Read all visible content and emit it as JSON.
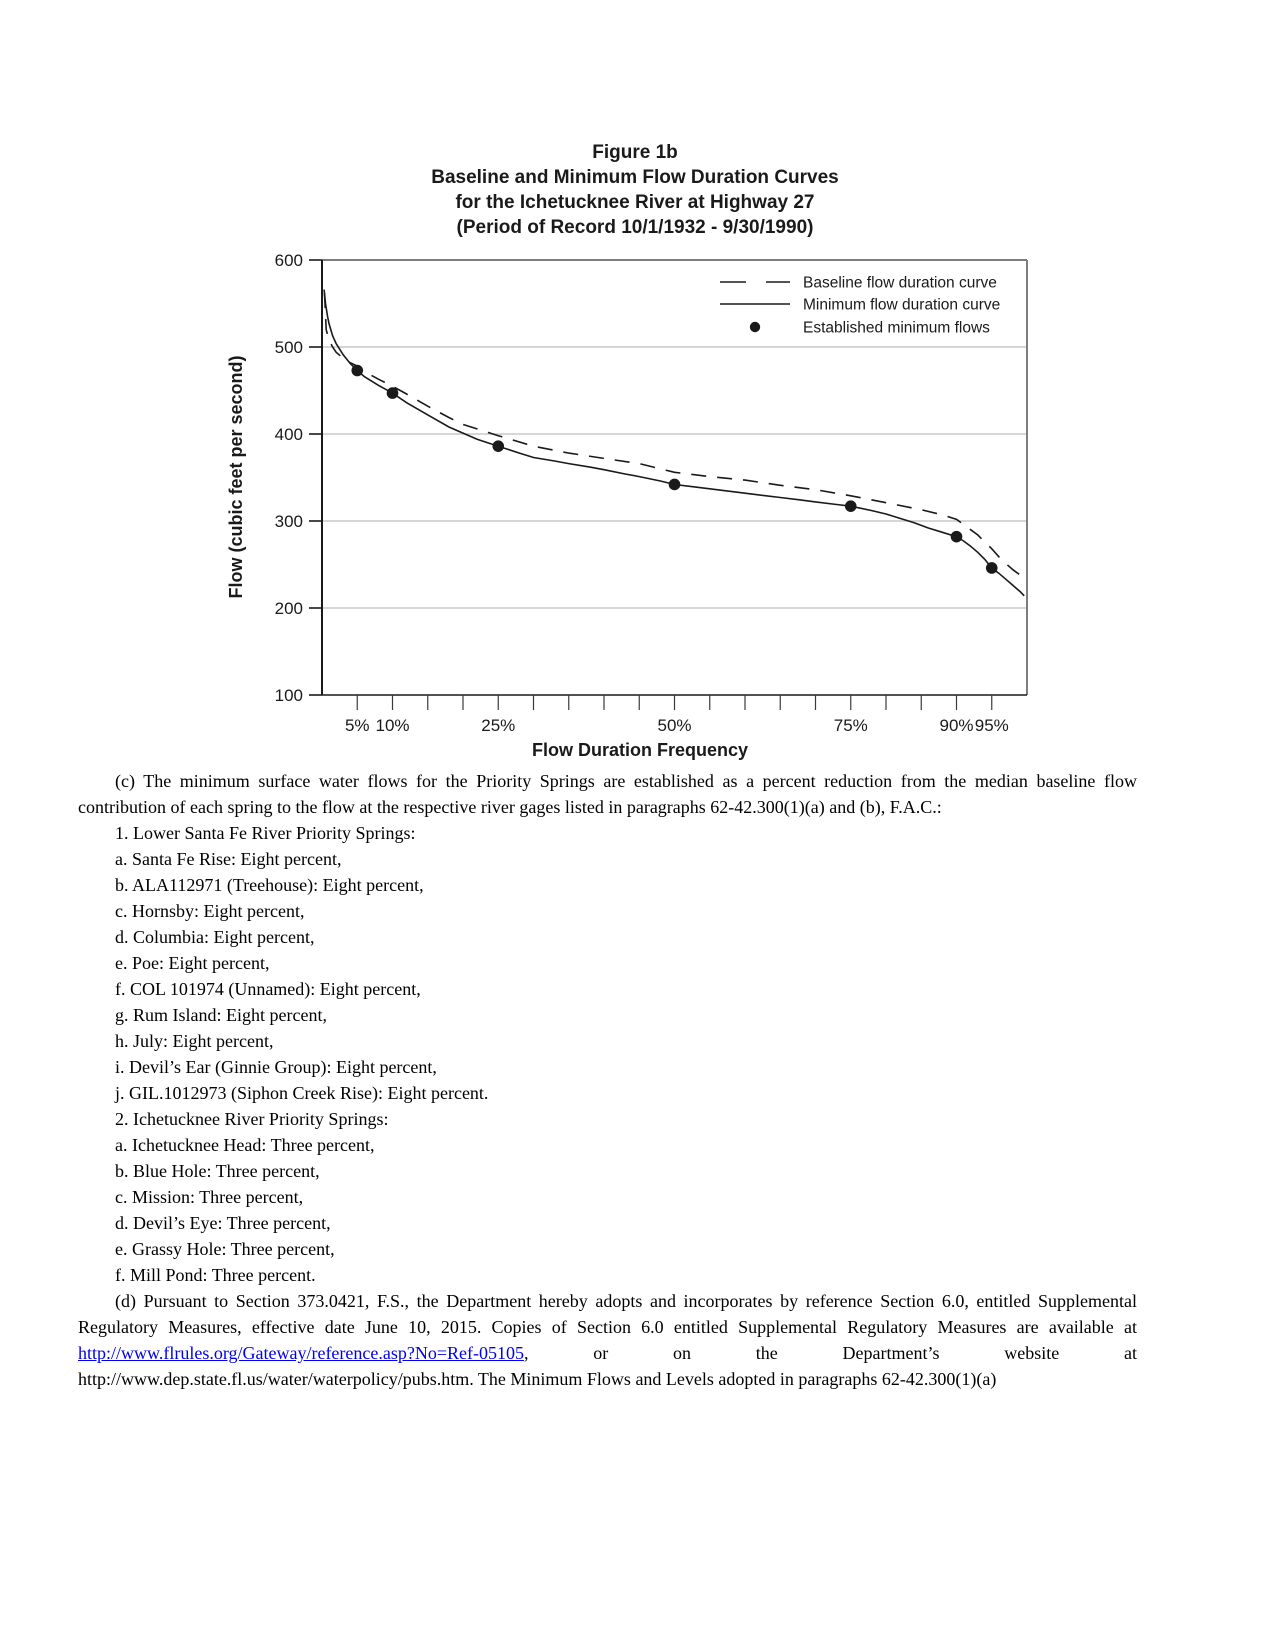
{
  "figure": {
    "title_lines": [
      "Figure 1b",
      "Baseline and Minimum Flow Duration Curves",
      "for the Ichetucknee River at Highway 27",
      "(Period of Record 10/1/1932 - 9/30/1990)"
    ]
  },
  "chart_data": {
    "type": "line",
    "title": "Figure 1b  Baseline and Minimum Flow Duration Curves for the Ichetucknee River at Highway 27 (Period of Record 10/1/1932 - 9/30/1990)",
    "xlabel": "Flow Duration Frequency",
    "ylabel": "Flow (cubic feet per second)",
    "xlim": [
      0,
      100
    ],
    "ylim": [
      100,
      600
    ],
    "grid": "horizontal-light",
    "legend_position": "inside-top-right",
    "y_ticks": [
      600,
      500,
      400,
      300,
      200,
      100
    ],
    "x_minor_tick_step": 5,
    "x_tick_labels": [
      {
        "value": 5,
        "label": "5%"
      },
      {
        "value": 10,
        "label": "10%"
      },
      {
        "value": 25,
        "label": "25%"
      },
      {
        "value": 50,
        "label": "50%"
      },
      {
        "value": 75,
        "label": "75%"
      },
      {
        "value": 90,
        "label": "90%"
      },
      {
        "value": 95,
        "label": "95%"
      }
    ],
    "legend": [
      {
        "label": "Baseline flow duration curve",
        "style": "dashed"
      },
      {
        "label": "Minimum flow duration curve",
        "style": "solid"
      },
      {
        "label": "Established minimum flows",
        "style": "dot"
      }
    ],
    "series": [
      {
        "name": "Baseline flow duration curve",
        "style": "dashed",
        "points": [
          [
            0.35,
            562
          ],
          [
            0.6,
            520
          ],
          [
            1,
            508
          ],
          [
            1.5,
            500
          ],
          [
            2,
            494
          ],
          [
            3,
            487
          ],
          [
            4,
            482
          ],
          [
            5,
            478
          ],
          [
            6,
            472
          ],
          [
            8,
            463
          ],
          [
            10,
            455
          ],
          [
            12,
            446
          ],
          [
            15,
            432
          ],
          [
            18,
            419
          ],
          [
            20,
            411
          ],
          [
            25,
            398
          ],
          [
            30,
            386
          ],
          [
            35,
            378
          ],
          [
            40,
            372
          ],
          [
            45,
            366
          ],
          [
            50,
            356
          ],
          [
            55,
            351
          ],
          [
            60,
            347
          ],
          [
            65,
            341
          ],
          [
            70,
            336
          ],
          [
            75,
            329
          ],
          [
            80,
            321
          ],
          [
            85,
            313
          ],
          [
            88,
            307
          ],
          [
            90,
            302
          ],
          [
            92,
            290
          ],
          [
            93,
            284
          ],
          [
            94,
            276
          ],
          [
            95,
            268
          ],
          [
            96,
            259
          ],
          [
            97,
            251
          ],
          [
            98,
            244
          ],
          [
            99,
            238
          ],
          [
            99.6,
            234
          ]
        ]
      },
      {
        "name": "Minimum flow duration curve",
        "style": "solid",
        "points": [
          [
            0.3,
            566
          ],
          [
            0.5,
            550
          ],
          [
            0.8,
            535
          ],
          [
            1,
            527
          ],
          [
            1.5,
            513
          ],
          [
            2,
            504
          ],
          [
            3,
            491
          ],
          [
            4,
            481
          ],
          [
            5,
            473
          ],
          [
            6,
            466
          ],
          [
            8,
            456
          ],
          [
            10,
            447
          ],
          [
            12,
            436
          ],
          [
            15,
            422
          ],
          [
            18,
            408
          ],
          [
            20,
            401
          ],
          [
            22,
            394
          ],
          [
            25,
            386
          ],
          [
            28,
            378
          ],
          [
            30,
            373
          ],
          [
            33,
            369
          ],
          [
            35,
            366
          ],
          [
            38,
            362
          ],
          [
            40,
            359
          ],
          [
            43,
            354
          ],
          [
            45,
            351
          ],
          [
            48,
            346
          ],
          [
            50,
            342
          ],
          [
            53,
            339
          ],
          [
            55,
            337
          ],
          [
            58,
            334
          ],
          [
            60,
            332
          ],
          [
            63,
            329
          ],
          [
            65,
            327
          ],
          [
            68,
            324
          ],
          [
            70,
            322
          ],
          [
            73,
            319
          ],
          [
            75,
            317
          ],
          [
            78,
            312
          ],
          [
            80,
            308
          ],
          [
            82,
            303
          ],
          [
            84,
            298
          ],
          [
            86,
            292
          ],
          [
            88,
            287
          ],
          [
            90,
            282
          ],
          [
            91,
            277
          ],
          [
            92,
            271
          ],
          [
            93,
            264
          ],
          [
            94,
            256
          ],
          [
            95,
            246
          ],
          [
            96,
            240
          ],
          [
            97,
            233
          ],
          [
            98,
            226
          ],
          [
            99,
            219
          ],
          [
            99.6,
            214
          ]
        ]
      }
    ],
    "established_minimum_flows": {
      "name": "Established minimum flows",
      "x_percent": [
        5,
        10,
        25,
        50,
        75,
        90,
        95
      ],
      "flow_cfs": [
        473,
        447,
        386,
        342,
        317,
        282,
        246
      ]
    }
  },
  "body": {
    "para_c": "(c) The minimum surface water flows for the Priority Springs are established as a percent reduction from the median baseline flow contribution of each spring to the flow at the respective river gages listed in paragraphs 62-42.300(1)(a) and (b), F.A.C.:",
    "list_items": [
      "1. Lower Santa Fe River Priority Springs:",
      "a. Santa Fe Rise: Eight percent,",
      "b. ALA112971 (Treehouse): Eight percent,",
      "c. Hornsby: Eight percent,",
      "d. Columbia: Eight percent,",
      "e. Poe: Eight percent,",
      "f. COL 101974 (Unnamed): Eight percent,",
      "g. Rum Island: Eight percent,",
      "h. July: Eight percent,",
      "i. Devil’s Ear (Ginnie Group): Eight percent,",
      "j. GIL.1012973 (Siphon Creek Rise): Eight percent.",
      "2. Ichetucknee River Priority Springs:",
      "a. Ichetucknee Head: Three percent,",
      "b. Blue Hole: Three percent,",
      "c. Mission: Three percent,",
      "d. Devil’s Eye: Three percent,",
      "e. Grassy Hole: Three percent,",
      "f. Mill Pond: Three percent."
    ],
    "para_d": {
      "before_link": "(d) Pursuant to Section 373.0421, F.S., the Department hereby adopts and incorporates by reference Section 6.0, entitled Supplemental Regulatory Measures, effective date June 10, 2015. Copies of Section 6.0 entitled Supplemental Regulatory Measures are available at ",
      "link_text": "http://www.flrules.org/Gateway/reference.asp?No=Ref-05105",
      "link_href": "http://www.flrules.org/Gateway/reference.asp?No=Ref-05105",
      "after_link": ", or on the Department’s website at http://www.dep.state.fl.us/water/waterpolicy/pubs.htm. The Minimum Flows and Levels adopted in paragraphs 62-42.300(1)(a)"
    }
  },
  "colors": {
    "ink": "#1a1a1a",
    "grid_light": "#c8c8c8",
    "box_border": "#7d7d7d",
    "link_blue": "#0000ee"
  }
}
